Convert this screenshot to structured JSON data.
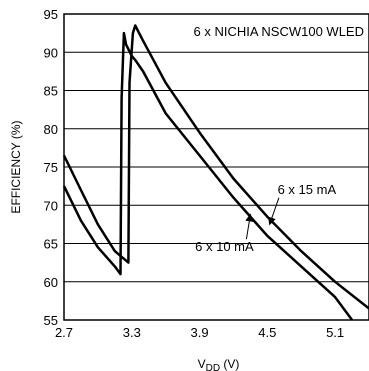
{
  "chart_data": {
    "type": "line",
    "title": "6 x NICHIA NSCW100 WLED",
    "xlabel": "V",
    "xlabel_sub": "DD",
    "xlabel_unit": " (V)",
    "ylabel": "EFFICIENCY (%)",
    "xlim": [
      2.7,
      5.4
    ],
    "ylim": [
      55,
      95
    ],
    "x_ticks": [
      2.7,
      3.3,
      3.9,
      4.5,
      5.1
    ],
    "x_tick_labels": [
      "2.7",
      "3.3",
      "3.9",
      "4.5",
      "5.1"
    ],
    "y_ticks": [
      55,
      60,
      65,
      70,
      75,
      80,
      85,
      90,
      95
    ],
    "y_tick_labels": [
      "55",
      "60",
      "65",
      "70",
      "75",
      "80",
      "85",
      "90",
      "95"
    ],
    "grid": "horizontal",
    "series": [
      {
        "name": "6 x 15 mA",
        "x": [
          2.7,
          2.85,
          3.0,
          3.15,
          3.27,
          3.28,
          3.31,
          3.33,
          3.4,
          3.6,
          3.9,
          4.2,
          4.5,
          4.8,
          5.1,
          5.4
        ],
        "y": [
          76.5,
          72,
          67.5,
          64,
          62.5,
          86,
          92.5,
          93.5,
          91.5,
          86,
          79.5,
          73.5,
          68.5,
          64,
          60,
          56.5
        ]
      },
      {
        "name": "6 x 10 mA",
        "x": [
          2.7,
          2.85,
          3.0,
          3.15,
          3.2,
          3.21,
          3.23,
          3.25,
          3.3,
          3.33,
          3.4,
          3.6,
          3.9,
          4.2,
          4.5,
          4.8,
          5.1,
          5.25
        ],
        "y": [
          72.5,
          68,
          64.5,
          62,
          61,
          84,
          92.5,
          91,
          89.5,
          89,
          87.5,
          82,
          76.5,
          71,
          66,
          62,
          58,
          55
        ]
      }
    ],
    "annotations": [
      {
        "text": "6 x 15 mA",
        "x": 4.85,
        "y": 71.5,
        "arrow_to": [
          4.52,
          67.5
        ]
      },
      {
        "text": "6 x 10 mA",
        "x": 4.12,
        "y": 64,
        "arrow_to": [
          4.35,
          68.8
        ]
      }
    ]
  }
}
